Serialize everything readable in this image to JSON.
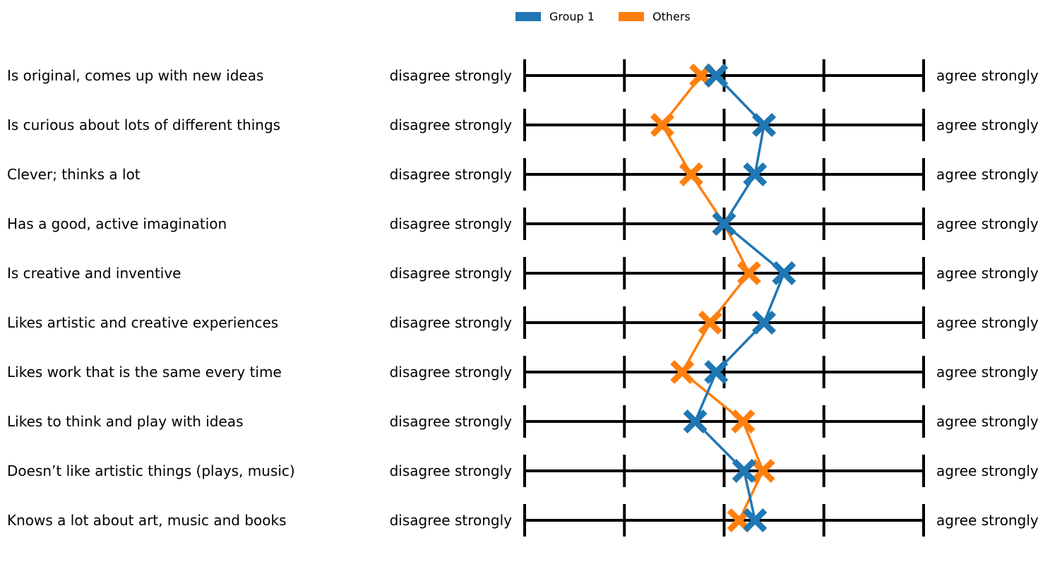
{
  "chart_data": {
    "type": "scatter",
    "scale": {
      "points": 5,
      "min": 1,
      "max": 5,
      "left_anchor": "disagree strongly",
      "right_anchor": "agree strongly"
    },
    "items": [
      "Is original, comes up with new ideas",
      "Is curious about lots of different things",
      "Clever; thinks a lot",
      "Has a good, active imagination",
      "Is creative and inventive",
      "Likes artistic and creative experiences",
      "Likes work that is the same every time",
      "Likes to think and play with ideas",
      "Doesn’t like artistic things (plays, music)",
      "Knows a lot about art, music and books"
    ],
    "series": [
      {
        "name": "Group 1",
        "color": "#1f77b4",
        "values": [
          2.92,
          3.4,
          3.31,
          3.0,
          3.6,
          3.4,
          2.92,
          2.71,
          3.2,
          3.31
        ]
      },
      {
        "name": "Others",
        "color": "#ff7f0e",
        "values": [
          2.77,
          2.38,
          2.67,
          3.0,
          3.25,
          2.86,
          2.58,
          3.19,
          3.39,
          3.15
        ]
      }
    ],
    "legend": {
      "placement": "top-center"
    },
    "grid": false
  }
}
